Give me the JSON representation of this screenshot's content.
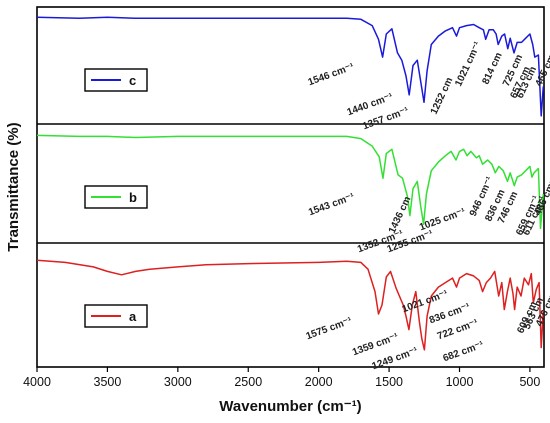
{
  "chart_data": {
    "type": "line",
    "xlabel": "Wavenumber (cm⁻¹)",
    "ylabel": "Transmittance (%)",
    "xlim": [
      4000,
      400
    ],
    "x_reversed": true,
    "x_ticks": [
      4000,
      3500,
      3000,
      2500,
      2000,
      1500,
      1000,
      500
    ],
    "grid": false,
    "panels": 3,
    "series": [
      {
        "name": "c",
        "color": "#1a1adb",
        "points": [
          [
            4000,
            96
          ],
          [
            3700,
            95
          ],
          [
            3500,
            96
          ],
          [
            3300,
            95
          ],
          [
            3000,
            95
          ],
          [
            2500,
            95
          ],
          [
            2000,
            95
          ],
          [
            1800,
            95
          ],
          [
            1700,
            94
          ],
          [
            1620,
            88
          ],
          [
            1575,
            75
          ],
          [
            1546,
            58
          ],
          [
            1520,
            80
          ],
          [
            1480,
            85
          ],
          [
            1440,
            62
          ],
          [
            1410,
            55
          ],
          [
            1380,
            40
          ],
          [
            1357,
            22
          ],
          [
            1330,
            50
          ],
          [
            1300,
            55
          ],
          [
            1270,
            30
          ],
          [
            1252,
            15
          ],
          [
            1230,
            45
          ],
          [
            1200,
            70
          ],
          [
            1150,
            78
          ],
          [
            1100,
            83
          ],
          [
            1050,
            86
          ],
          [
            1021,
            78
          ],
          [
            1000,
            86
          ],
          [
            950,
            88
          ],
          [
            900,
            89
          ],
          [
            860,
            86
          ],
          [
            830,
            84
          ],
          [
            814,
            75
          ],
          [
            790,
            84
          ],
          [
            760,
            84
          ],
          [
            740,
            80
          ],
          [
            725,
            70
          ],
          [
            700,
            78
          ],
          [
            680,
            80
          ],
          [
            657,
            66
          ],
          [
            640,
            76
          ],
          [
            613,
            62
          ],
          [
            590,
            72
          ],
          [
            560,
            72
          ],
          [
            530,
            76
          ],
          [
            500,
            80
          ],
          [
            480,
            70
          ],
          [
            465,
            58
          ],
          [
            440,
            60
          ],
          [
            420,
            2
          ],
          [
            405,
            30
          ]
        ]
      },
      {
        "name": "b",
        "color": "#33e033",
        "points": [
          [
            4000,
            95
          ],
          [
            3700,
            94
          ],
          [
            3500,
            94
          ],
          [
            3300,
            93
          ],
          [
            3000,
            94
          ],
          [
            2500,
            94
          ],
          [
            2000,
            94
          ],
          [
            1800,
            94
          ],
          [
            1700,
            92
          ],
          [
            1620,
            85
          ],
          [
            1570,
            75
          ],
          [
            1543,
            55
          ],
          [
            1520,
            78
          ],
          [
            1480,
            82
          ],
          [
            1436,
            58
          ],
          [
            1405,
            55
          ],
          [
            1370,
            38
          ],
          [
            1352,
            20
          ],
          [
            1330,
            45
          ],
          [
            1300,
            52
          ],
          [
            1275,
            28
          ],
          [
            1255,
            12
          ],
          [
            1235,
            40
          ],
          [
            1200,
            62
          ],
          [
            1150,
            70
          ],
          [
            1100,
            76
          ],
          [
            1060,
            80
          ],
          [
            1025,
            72
          ],
          [
            1000,
            80
          ],
          [
            970,
            82
          ],
          [
            946,
            76
          ],
          [
            920,
            80
          ],
          [
            880,
            74
          ],
          [
            860,
            76
          ],
          [
            836,
            68
          ],
          [
            800,
            72
          ],
          [
            770,
            68
          ],
          [
            746,
            60
          ],
          [
            720,
            66
          ],
          [
            690,
            62
          ],
          [
            659,
            52
          ],
          [
            640,
            60
          ],
          [
            611,
            48
          ],
          [
            590,
            56
          ],
          [
            560,
            58
          ],
          [
            530,
            62
          ],
          [
            500,
            66
          ],
          [
            486,
            56
          ],
          [
            470,
            60
          ],
          [
            440,
            64
          ],
          [
            425,
            8
          ],
          [
            405,
            40
          ]
        ]
      },
      {
        "name": "a",
        "color": "#dd2020",
        "points": [
          [
            4000,
            90
          ],
          [
            3800,
            88
          ],
          [
            3600,
            84
          ],
          [
            3500,
            80
          ],
          [
            3400,
            77
          ],
          [
            3300,
            80
          ],
          [
            3200,
            82
          ],
          [
            3000,
            84
          ],
          [
            2800,
            86
          ],
          [
            2500,
            87
          ],
          [
            2000,
            88
          ],
          [
            1800,
            89
          ],
          [
            1700,
            88
          ],
          [
            1650,
            82
          ],
          [
            1600,
            62
          ],
          [
            1575,
            42
          ],
          [
            1550,
            50
          ],
          [
            1520,
            75
          ],
          [
            1490,
            80
          ],
          [
            1450,
            65
          ],
          [
            1400,
            50
          ],
          [
            1380,
            40
          ],
          [
            1359,
            28
          ],
          [
            1335,
            50
          ],
          [
            1310,
            62
          ],
          [
            1285,
            35
          ],
          [
            1268,
            20
          ],
          [
            1249,
            10
          ],
          [
            1230,
            40
          ],
          [
            1200,
            58
          ],
          [
            1150,
            66
          ],
          [
            1100,
            70
          ],
          [
            1050,
            74
          ],
          [
            1021,
            66
          ],
          [
            1000,
            74
          ],
          [
            950,
            78
          ],
          [
            900,
            76
          ],
          [
            860,
            72
          ],
          [
            836,
            62
          ],
          [
            810,
            70
          ],
          [
            780,
            74
          ],
          [
            750,
            80
          ],
          [
            722,
            58
          ],
          [
            700,
            70
          ],
          [
            682,
            46
          ],
          [
            660,
            62
          ],
          [
            640,
            74
          ],
          [
            620,
            60
          ],
          [
            609,
            46
          ],
          [
            590,
            66
          ],
          [
            563,
            58
          ],
          [
            540,
            74
          ],
          [
            510,
            68
          ],
          [
            490,
            78
          ],
          [
            476,
            52
          ],
          [
            455,
            64
          ],
          [
            435,
            70
          ],
          [
            420,
            12
          ],
          [
            405,
            45
          ]
        ]
      }
    ],
    "annotations": [
      {
        "panel": "c",
        "text": "1546 cm⁻¹",
        "x": 1546
      },
      {
        "panel": "c",
        "text": "1440 cm⁻¹",
        "x": 1440
      },
      {
        "panel": "c",
        "text": "1357 cm⁻¹",
        "x": 1357
      },
      {
        "panel": "c",
        "text": "1252 cm",
        "x": 1252
      },
      {
        "panel": "c",
        "text": "1021 cm⁻¹",
        "x": 1021
      },
      {
        "panel": "c",
        "text": "814 cm",
        "x": 814
      },
      {
        "panel": "c",
        "text": "725 cm",
        "x": 725
      },
      {
        "panel": "c",
        "text": "657 cm",
        "x": 657
      },
      {
        "panel": "c",
        "text": "613 cm",
        "x": 613
      },
      {
        "panel": "c",
        "text": "465 cm",
        "x": 465
      },
      {
        "panel": "b",
        "text": "1543 cm⁻¹",
        "x": 1543
      },
      {
        "panel": "b",
        "text": "1436 cm",
        "x": 1436
      },
      {
        "panel": "b",
        "text": "1352 cm⁻¹",
        "x": 1352
      },
      {
        "panel": "b",
        "text": "1255 cm⁻¹",
        "x": 1255
      },
      {
        "panel": "b",
        "text": "1025 cm⁻¹",
        "x": 1025
      },
      {
        "panel": "b",
        "text": "946 cm⁻¹",
        "x": 946
      },
      {
        "panel": "b",
        "text": "836 cm",
        "x": 836
      },
      {
        "panel": "b",
        "text": "746 cm",
        "x": 746
      },
      {
        "panel": "b",
        "text": "659 cm⁻¹",
        "x": 659
      },
      {
        "panel": "b",
        "text": "611 cm⁻¹",
        "x": 611
      },
      {
        "panel": "b",
        "text": "486 cm⁻¹",
        "x": 486
      },
      {
        "panel": "a",
        "text": "1575 cm⁻¹",
        "x": 1575
      },
      {
        "panel": "a",
        "text": "1359 cm⁻¹",
        "x": 1359
      },
      {
        "panel": "a",
        "text": "1249 cm⁻¹",
        "x": 1249
      },
      {
        "panel": "a",
        "text": "1021 cm⁻¹",
        "x": 1021
      },
      {
        "panel": "a",
        "text": "836 cm⁻¹",
        "x": 836
      },
      {
        "panel": "a",
        "text": "722 cm⁻¹",
        "x": 722
      },
      {
        "panel": "a",
        "text": "682 cm⁻¹",
        "x": 682
      },
      {
        "panel": "a",
        "text": "609 cm",
        "x": 609
      },
      {
        "panel": "a",
        "text": "563 cm",
        "x": 563
      },
      {
        "panel": "a",
        "text": "476 cm",
        "x": 476
      }
    ]
  }
}
